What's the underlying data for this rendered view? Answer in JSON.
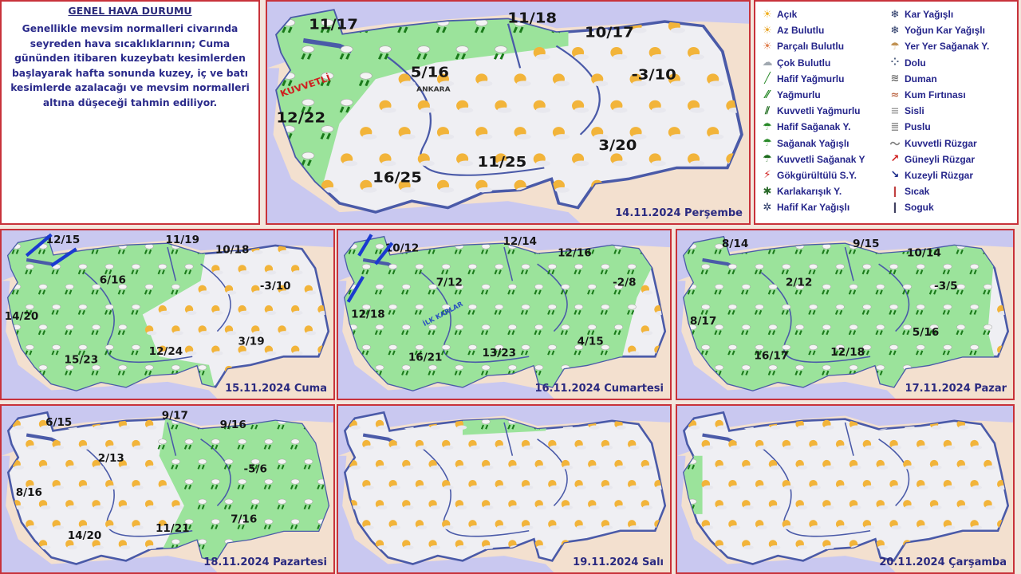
{
  "summary": {
    "title": "GENEL HAVA DURUMU",
    "text": "Genellikle mevsim normalleri civarında seyreden hava sıcaklıklarının; Cuma gününden itibaren kuzeybatı kesimlerden başlayarak hafta sonunda kuzey, iç ve batı kesimlerde azalacağı ve mevsim normalleri altına düşeceği tahmin ediliyor."
  },
  "legend": [
    {
      "label": "Açık",
      "icon": "sun-icon",
      "color": "#f0b020"
    },
    {
      "label": "Az Bulutlu",
      "icon": "sun-small-cloud-icon",
      "color": "#e8a830"
    },
    {
      "label": "Parçalı Bulutlu",
      "icon": "partly-cloudy-icon",
      "color": "#e08050"
    },
    {
      "label": "Çok Bulutlu",
      "icon": "cloud-icon",
      "color": "#a0a8b0"
    },
    {
      "label": "Hafif Yağmurlu",
      "icon": "light-rain-icon",
      "color": "#2a8a2a"
    },
    {
      "label": "Yağmurlu",
      "icon": "rain-icon",
      "color": "#2a8a2a"
    },
    {
      "label": "Kuvvetli Yağmurlu",
      "icon": "heavy-rain-icon",
      "color": "#1a6a1a"
    },
    {
      "label": "Hafif Sağanak Y.",
      "icon": "light-shower-icon",
      "color": "#2a8a2a"
    },
    {
      "label": "Sağanak Yağışlı",
      "icon": "shower-icon",
      "color": "#2a8a2a"
    },
    {
      "label": "Kuvvetli Sağanak Y",
      "icon": "heavy-shower-icon",
      "color": "#1a6a1a"
    },
    {
      "label": "Gökgürültülü S.Y.",
      "icon": "thunderstorm-icon",
      "color": "#d02020"
    },
    {
      "label": "Karlakarışık Y.",
      "icon": "sleet-icon",
      "color": "#2a6a2a"
    },
    {
      "label": "Hafif Kar Yağışlı",
      "icon": "light-snow-icon",
      "color": "#203060"
    },
    {
      "label": "Kar Yağışlı",
      "icon": "snow-icon",
      "color": "#203060"
    },
    {
      "label": "Yoğun Kar Yağışlı",
      "icon": "heavy-snow-icon",
      "color": "#203060"
    },
    {
      "label": "Yer Yer Sağanak Y.",
      "icon": "scattered-shower-icon",
      "color": "#c09050"
    },
    {
      "label": "Dolu",
      "icon": "hail-icon",
      "color": "#506080"
    },
    {
      "label": "Duman",
      "icon": "smoke-icon",
      "color": "#707070"
    },
    {
      "label": "Kum Fırtınası",
      "icon": "sandstorm-icon",
      "color": "#c07050"
    },
    {
      "label": "Sisli",
      "icon": "fog-icon",
      "color": "#a0a0a0"
    },
    {
      "label": "Puslu",
      "icon": "mist-icon",
      "color": "#909090"
    },
    {
      "label": "Kuvvetli Rüzgar",
      "icon": "strong-wind-icon",
      "color": "#808080"
    },
    {
      "label": "Güneyli Rüzgar",
      "icon": "arrow-northeast-icon",
      "color": "#d02020"
    },
    {
      "label": "Kuzeyli Rüzgar",
      "icon": "arrow-southeast-icon",
      "color": "#1a2a8a"
    },
    {
      "label": "Sıcak",
      "icon": "thermometer-hot-icon",
      "color": "#c04040"
    },
    {
      "label": "Soguk",
      "icon": "thermometer-cold-icon",
      "color": "#404060"
    }
  ],
  "maps": [
    {
      "date": "14.11.2024 Perşembe",
      "city": "ANKARA",
      "temps": [
        "11/17",
        "11/18",
        "10/17",
        "5/16",
        "-3/10",
        "12/22",
        "3/20",
        "11/25",
        "16/25"
      ],
      "note": "KUVVETLİ"
    },
    {
      "date": "15.11.2024 Cuma",
      "temps": [
        "12/15",
        "11/19",
        "10/18",
        "6/16",
        "-3/10",
        "14/20",
        "3/19",
        "15/23",
        "12/24"
      ]
    },
    {
      "date": "16.11.2024 Cumartesi",
      "temps": [
        "10/12",
        "12/14",
        "12/16",
        "7/12",
        "-2/8",
        "12/18",
        "16/21",
        "13/23",
        "4/15"
      ],
      "note": "İLK KARLAR"
    },
    {
      "date": "17.11.2024 Pazar",
      "temps": [
        "8/14",
        "9/15",
        "10/14",
        "2/12",
        "-3/5",
        "8/17",
        "5/16",
        "16/17",
        "12/18"
      ]
    },
    {
      "date": "18.11.2024 Pazartesi",
      "temps": [
        "6/15",
        "9/17",
        "9/16",
        "2/13",
        "-5/6",
        "8/16",
        "7/16",
        "14/20",
        "11/21"
      ]
    },
    {
      "date": "19.11.2024 Salı",
      "temps": []
    },
    {
      "date": "20.11.2024 Çarşamba",
      "temps": []
    }
  ],
  "colors": {
    "sea": "#c9c8f0",
    "land_neighbor": "#f3e0cf",
    "dry": "#efeff3",
    "rain": "#9be39b",
    "border": "#c8323a",
    "text": "#2a2a80"
  }
}
